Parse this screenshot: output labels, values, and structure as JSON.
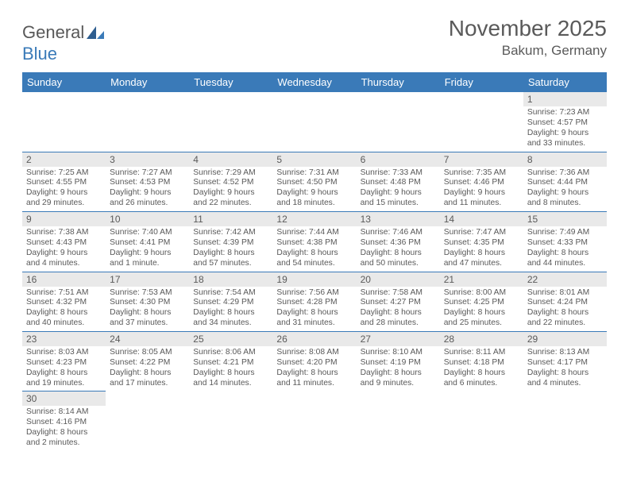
{
  "logo": {
    "word1": "General",
    "word2": "Blue"
  },
  "title": {
    "month": "November 2025",
    "location": "Bakum, Germany"
  },
  "weekdays": [
    "Sunday",
    "Monday",
    "Tuesday",
    "Wednesday",
    "Thursday",
    "Friday",
    "Saturday"
  ],
  "colors": {
    "header_bg": "#3a7ab8",
    "daynum_bg": "#e9e9e9",
    "text": "#595959"
  },
  "grid": [
    [
      {
        "n": "",
        "sr": "",
        "ss": "",
        "dl": ""
      },
      {
        "n": "",
        "sr": "",
        "ss": "",
        "dl": ""
      },
      {
        "n": "",
        "sr": "",
        "ss": "",
        "dl": ""
      },
      {
        "n": "",
        "sr": "",
        "ss": "",
        "dl": ""
      },
      {
        "n": "",
        "sr": "",
        "ss": "",
        "dl": ""
      },
      {
        "n": "",
        "sr": "",
        "ss": "",
        "dl": ""
      },
      {
        "n": "1",
        "sr": "Sunrise: 7:23 AM",
        "ss": "Sunset: 4:57 PM",
        "dl": "Daylight: 9 hours and 33 minutes."
      }
    ],
    [
      {
        "n": "2",
        "sr": "Sunrise: 7:25 AM",
        "ss": "Sunset: 4:55 PM",
        "dl": "Daylight: 9 hours and 29 minutes."
      },
      {
        "n": "3",
        "sr": "Sunrise: 7:27 AM",
        "ss": "Sunset: 4:53 PM",
        "dl": "Daylight: 9 hours and 26 minutes."
      },
      {
        "n": "4",
        "sr": "Sunrise: 7:29 AM",
        "ss": "Sunset: 4:52 PM",
        "dl": "Daylight: 9 hours and 22 minutes."
      },
      {
        "n": "5",
        "sr": "Sunrise: 7:31 AM",
        "ss": "Sunset: 4:50 PM",
        "dl": "Daylight: 9 hours and 18 minutes."
      },
      {
        "n": "6",
        "sr": "Sunrise: 7:33 AM",
        "ss": "Sunset: 4:48 PM",
        "dl": "Daylight: 9 hours and 15 minutes."
      },
      {
        "n": "7",
        "sr": "Sunrise: 7:35 AM",
        "ss": "Sunset: 4:46 PM",
        "dl": "Daylight: 9 hours and 11 minutes."
      },
      {
        "n": "8",
        "sr": "Sunrise: 7:36 AM",
        "ss": "Sunset: 4:44 PM",
        "dl": "Daylight: 9 hours and 8 minutes."
      }
    ],
    [
      {
        "n": "9",
        "sr": "Sunrise: 7:38 AM",
        "ss": "Sunset: 4:43 PM",
        "dl": "Daylight: 9 hours and 4 minutes."
      },
      {
        "n": "10",
        "sr": "Sunrise: 7:40 AM",
        "ss": "Sunset: 4:41 PM",
        "dl": "Daylight: 9 hours and 1 minute."
      },
      {
        "n": "11",
        "sr": "Sunrise: 7:42 AM",
        "ss": "Sunset: 4:39 PM",
        "dl": "Daylight: 8 hours and 57 minutes."
      },
      {
        "n": "12",
        "sr": "Sunrise: 7:44 AM",
        "ss": "Sunset: 4:38 PM",
        "dl": "Daylight: 8 hours and 54 minutes."
      },
      {
        "n": "13",
        "sr": "Sunrise: 7:46 AM",
        "ss": "Sunset: 4:36 PM",
        "dl": "Daylight: 8 hours and 50 minutes."
      },
      {
        "n": "14",
        "sr": "Sunrise: 7:47 AM",
        "ss": "Sunset: 4:35 PM",
        "dl": "Daylight: 8 hours and 47 minutes."
      },
      {
        "n": "15",
        "sr": "Sunrise: 7:49 AM",
        "ss": "Sunset: 4:33 PM",
        "dl": "Daylight: 8 hours and 44 minutes."
      }
    ],
    [
      {
        "n": "16",
        "sr": "Sunrise: 7:51 AM",
        "ss": "Sunset: 4:32 PM",
        "dl": "Daylight: 8 hours and 40 minutes."
      },
      {
        "n": "17",
        "sr": "Sunrise: 7:53 AM",
        "ss": "Sunset: 4:30 PM",
        "dl": "Daylight: 8 hours and 37 minutes."
      },
      {
        "n": "18",
        "sr": "Sunrise: 7:54 AM",
        "ss": "Sunset: 4:29 PM",
        "dl": "Daylight: 8 hours and 34 minutes."
      },
      {
        "n": "19",
        "sr": "Sunrise: 7:56 AM",
        "ss": "Sunset: 4:28 PM",
        "dl": "Daylight: 8 hours and 31 minutes."
      },
      {
        "n": "20",
        "sr": "Sunrise: 7:58 AM",
        "ss": "Sunset: 4:27 PM",
        "dl": "Daylight: 8 hours and 28 minutes."
      },
      {
        "n": "21",
        "sr": "Sunrise: 8:00 AM",
        "ss": "Sunset: 4:25 PM",
        "dl": "Daylight: 8 hours and 25 minutes."
      },
      {
        "n": "22",
        "sr": "Sunrise: 8:01 AM",
        "ss": "Sunset: 4:24 PM",
        "dl": "Daylight: 8 hours and 22 minutes."
      }
    ],
    [
      {
        "n": "23",
        "sr": "Sunrise: 8:03 AM",
        "ss": "Sunset: 4:23 PM",
        "dl": "Daylight: 8 hours and 19 minutes."
      },
      {
        "n": "24",
        "sr": "Sunrise: 8:05 AM",
        "ss": "Sunset: 4:22 PM",
        "dl": "Daylight: 8 hours and 17 minutes."
      },
      {
        "n": "25",
        "sr": "Sunrise: 8:06 AM",
        "ss": "Sunset: 4:21 PM",
        "dl": "Daylight: 8 hours and 14 minutes."
      },
      {
        "n": "26",
        "sr": "Sunrise: 8:08 AM",
        "ss": "Sunset: 4:20 PM",
        "dl": "Daylight: 8 hours and 11 minutes."
      },
      {
        "n": "27",
        "sr": "Sunrise: 8:10 AM",
        "ss": "Sunset: 4:19 PM",
        "dl": "Daylight: 8 hours and 9 minutes."
      },
      {
        "n": "28",
        "sr": "Sunrise: 8:11 AM",
        "ss": "Sunset: 4:18 PM",
        "dl": "Daylight: 8 hours and 6 minutes."
      },
      {
        "n": "29",
        "sr": "Sunrise: 8:13 AM",
        "ss": "Sunset: 4:17 PM",
        "dl": "Daylight: 8 hours and 4 minutes."
      }
    ],
    [
      {
        "n": "30",
        "sr": "Sunrise: 8:14 AM",
        "ss": "Sunset: 4:16 PM",
        "dl": "Daylight: 8 hours and 2 minutes."
      },
      {
        "n": "",
        "sr": "",
        "ss": "",
        "dl": ""
      },
      {
        "n": "",
        "sr": "",
        "ss": "",
        "dl": ""
      },
      {
        "n": "",
        "sr": "",
        "ss": "",
        "dl": ""
      },
      {
        "n": "",
        "sr": "",
        "ss": "",
        "dl": ""
      },
      {
        "n": "",
        "sr": "",
        "ss": "",
        "dl": ""
      },
      {
        "n": "",
        "sr": "",
        "ss": "",
        "dl": ""
      }
    ]
  ]
}
